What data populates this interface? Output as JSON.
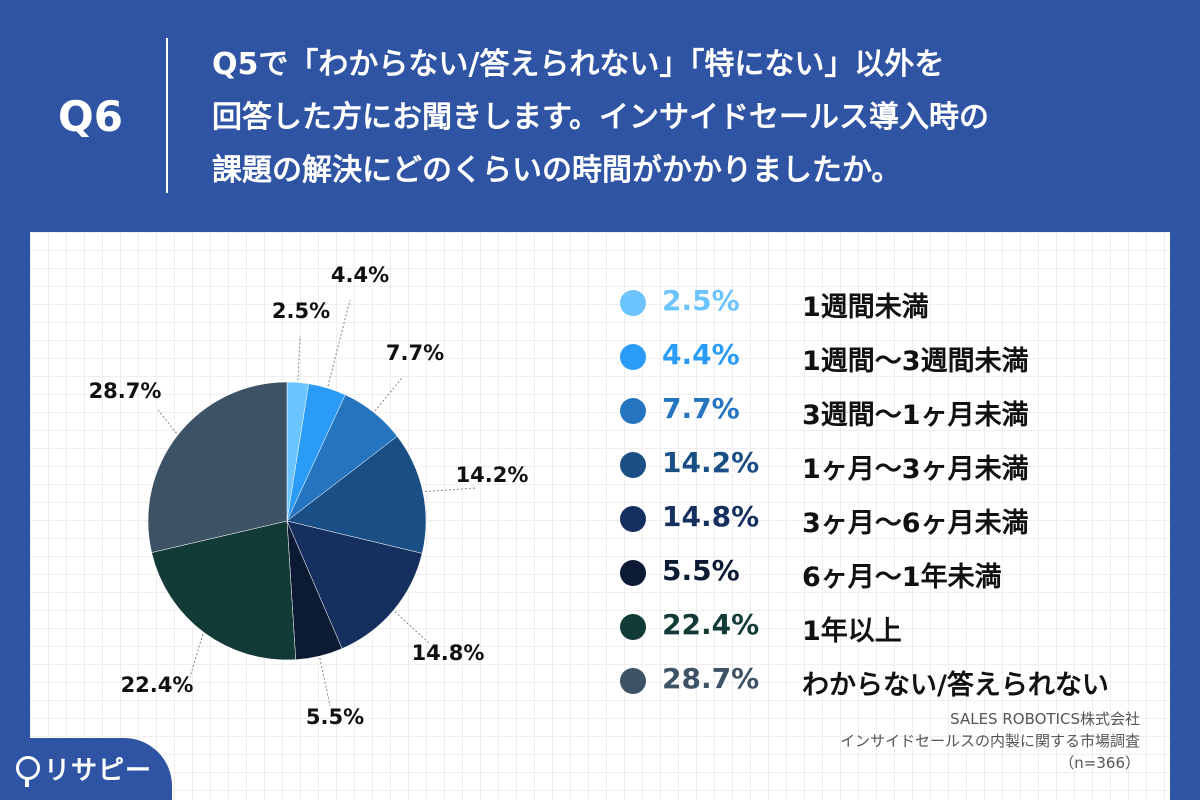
{
  "header": {
    "qnum": "Q6",
    "question_lines": [
      "Q5で「わからない/答えられない」「特にない」以外を",
      "回答した方にお聞きします。インサイドセールス導入時の",
      "課題の解決にどのくらいの時間がかかりましたか。"
    ]
  },
  "chart_data": {
    "type": "pie",
    "slices": [
      {
        "label": "1週間未満",
        "value": 2.5,
        "display": "2.5%",
        "color": "#6cc4ff"
      },
      {
        "label": "1週間〜3週間未満",
        "value": 4.4,
        "display": "4.4%",
        "color": "#2a9bf7"
      },
      {
        "label": "3週間〜1ヶ月未満",
        "value": 7.7,
        "display": "7.7%",
        "color": "#2574c0"
      },
      {
        "label": "1ヶ月〜3ヶ月未満",
        "value": 14.2,
        "display": "14.2%",
        "color": "#1a4f86"
      },
      {
        "label": "3ヶ月〜6ヶ月未満",
        "value": 14.8,
        "display": "14.8%",
        "color": "#15305f"
      },
      {
        "label": "6ヶ月〜1年未満",
        "value": 5.5,
        "display": "5.5%",
        "color": "#0d1a34"
      },
      {
        "label": "1年以上",
        "value": 22.4,
        "display": "22.4%",
        "color": "#123a36"
      },
      {
        "label": "わからない/答えられない",
        "value": 28.7,
        "display": "28.7%",
        "color": "#3e5266"
      }
    ],
    "start_angle_deg": 0,
    "direction": "clockwise"
  },
  "source": {
    "line1": "SALES ROBOTICS株式会社",
    "line2": "インサイドセールスの内製に関する市場調査",
    "line3": "（n=366）"
  },
  "logo": {
    "text": "リサピー"
  }
}
